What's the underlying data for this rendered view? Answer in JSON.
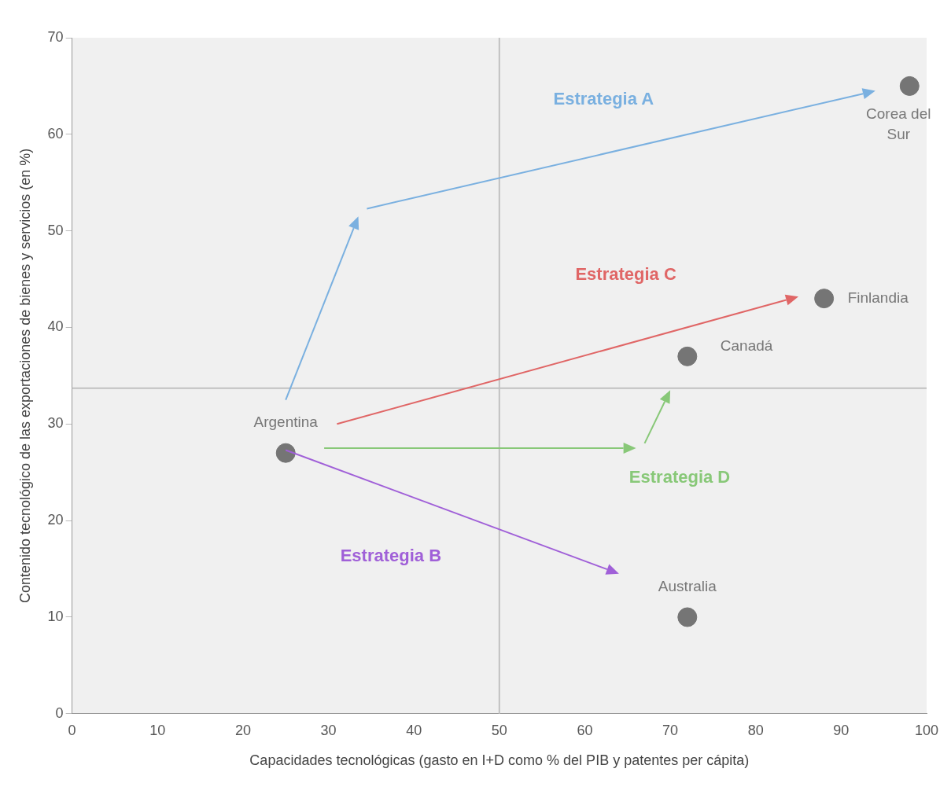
{
  "chart_data": {
    "type": "scatter",
    "xlabel": "Capacidades tecnológicas (gasto en I+D como % del PIB y patentes per cápita)",
    "ylabel": "Contenido tecnológico de las exportaciones de bienes y servicios (en %)",
    "series": [
      {
        "name": "Argentina",
        "color": "#757575",
        "x": [
          25
        ],
        "values": [
          27
        ]
      },
      {
        "name": "Corea del Sur",
        "color": "#757575",
        "x": [
          98
        ],
        "values": [
          65
        ]
      },
      {
        "name": "Finlandia",
        "color": "#757575",
        "x": [
          88
        ],
        "values": [
          43
        ]
      },
      {
        "name": "Canadá",
        "color": "#757575",
        "x": [
          72
        ],
        "values": [
          37
        ]
      },
      {
        "name": "Australia",
        "color": "#757575",
        "x": [
          72
        ],
        "values": [
          10
        ]
      }
    ],
    "xlim": [
      0,
      100
    ],
    "xticks": [
      0,
      10,
      20,
      30,
      40,
      50,
      60,
      70,
      80,
      90,
      100
    ],
    "ylim": [
      0,
      70
    ],
    "yticks": [
      0,
      10,
      20,
      30,
      40,
      50,
      60,
      70
    ],
    "ref_lines": [
      {
        "axis": "x",
        "value": 50,
        "color": "#c0c0c0"
      },
      {
        "axis": "y",
        "value": 33.7,
        "color": "#c0c0c0"
      }
    ],
    "annotations": [
      "Estrategia A",
      "Estrategia C",
      "Estrategia D",
      "Estrategia B"
    ],
    "grid": false,
    "legend": false,
    "marker": "circle"
  }
}
